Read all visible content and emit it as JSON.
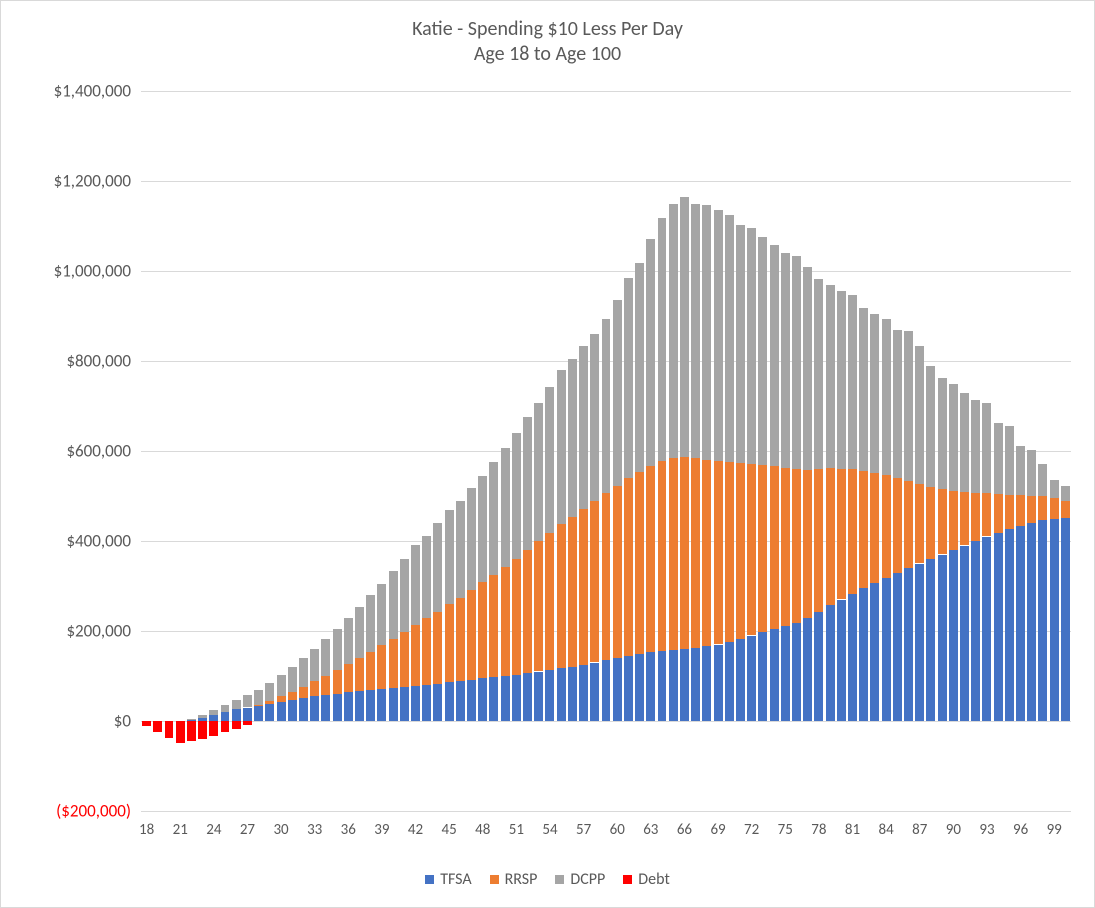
{
  "chart": {
    "type": "stacked-bar",
    "title_line1": "Katie - Spending $10 Less Per Day",
    "title_line2": "Age 18 to Age 100",
    "title_fontsize": 20,
    "title_color": "#595959",
    "background_color": "#ffffff",
    "border_color": "#d9d9d9",
    "grid_color": "#d9d9d9",
    "axis_label_color": "#595959",
    "negative_label_color": "#ff0000",
    "axis_fontsize": 17,
    "x_axis_fontsize": 15,
    "y": {
      "min": -200000,
      "max": 1400000,
      "ticks": [
        {
          "v": -200000,
          "label": "($200,000)",
          "neg": true
        },
        {
          "v": 0,
          "label": "$0"
        },
        {
          "v": 200000,
          "label": "$200,000"
        },
        {
          "v": 400000,
          "label": "$400,000"
        },
        {
          "v": 600000,
          "label": "$600,000"
        },
        {
          "v": 800000,
          "label": "$800,000"
        },
        {
          "v": 1000000,
          "label": "$1,000,000"
        },
        {
          "v": 1200000,
          "label": "$1,200,000"
        },
        {
          "v": 1400000,
          "label": "$1,400,000"
        }
      ]
    },
    "x": {
      "start": 18,
      "end": 100,
      "tick_step": 3,
      "labels": [
        18,
        21,
        24,
        27,
        30,
        33,
        36,
        39,
        42,
        45,
        48,
        51,
        54,
        57,
        60,
        63,
        66,
        69,
        72,
        75,
        78,
        81,
        84,
        87,
        90,
        93,
        96,
        99
      ]
    },
    "series": [
      {
        "key": "tfsa",
        "label": "TFSA",
        "color": "#4472c4"
      },
      {
        "key": "rrsp",
        "label": "RRSP",
        "color": "#ed7d31"
      },
      {
        "key": "dcpp",
        "label": "DCPP",
        "color": "#a5a5a5"
      },
      {
        "key": "debt",
        "label": "Debt",
        "color": "#ff0000"
      }
    ],
    "bar_gap_ratio": 0.2,
    "data": [
      {
        "age": 18,
        "tfsa": 0,
        "rrsp": 0,
        "dcpp": 0,
        "debt": -12000
      },
      {
        "age": 19,
        "tfsa": 0,
        "rrsp": 0,
        "dcpp": 0,
        "debt": -25000
      },
      {
        "age": 20,
        "tfsa": 0,
        "rrsp": 0,
        "dcpp": 0,
        "debt": -37000
      },
      {
        "age": 21,
        "tfsa": 0,
        "rrsp": 0,
        "dcpp": 0,
        "debt": -48000
      },
      {
        "age": 22,
        "tfsa": 3000,
        "rrsp": 0,
        "dcpp": 2000,
        "debt": -45000
      },
      {
        "age": 23,
        "tfsa": 7000,
        "rrsp": 0,
        "dcpp": 6000,
        "debt": -40000
      },
      {
        "age": 24,
        "tfsa": 14000,
        "rrsp": 0,
        "dcpp": 10000,
        "debt": -33000
      },
      {
        "age": 25,
        "tfsa": 21000,
        "rrsp": 0,
        "dcpp": 15000,
        "debt": -25000
      },
      {
        "age": 26,
        "tfsa": 26000,
        "rrsp": 0,
        "dcpp": 21000,
        "debt": -17000
      },
      {
        "age": 27,
        "tfsa": 30000,
        "rrsp": 0,
        "dcpp": 27000,
        "debt": -8000
      },
      {
        "age": 28,
        "tfsa": 34000,
        "rrsp": 2000,
        "dcpp": 33000,
        "debt": 0
      },
      {
        "age": 29,
        "tfsa": 38000,
        "rrsp": 6000,
        "dcpp": 40000,
        "debt": 0
      },
      {
        "age": 30,
        "tfsa": 43000,
        "rrsp": 12000,
        "dcpp": 47000,
        "debt": 0
      },
      {
        "age": 31,
        "tfsa": 47000,
        "rrsp": 18000,
        "dcpp": 55000,
        "debt": 0
      },
      {
        "age": 32,
        "tfsa": 51000,
        "rrsp": 25000,
        "dcpp": 63000,
        "debt": 0
      },
      {
        "age": 33,
        "tfsa": 55000,
        "rrsp": 33000,
        "dcpp": 72000,
        "debt": 0
      },
      {
        "age": 34,
        "tfsa": 58000,
        "rrsp": 42000,
        "dcpp": 82000,
        "debt": 0
      },
      {
        "age": 35,
        "tfsa": 61000,
        "rrsp": 52000,
        "dcpp": 92000,
        "debt": 0
      },
      {
        "age": 36,
        "tfsa": 64000,
        "rrsp": 62000,
        "dcpp": 102000,
        "debt": 0
      },
      {
        "age": 37,
        "tfsa": 67000,
        "rrsp": 73000,
        "dcpp": 113000,
        "debt": 0
      },
      {
        "age": 38,
        "tfsa": 69000,
        "rrsp": 85000,
        "dcpp": 125000,
        "debt": 0
      },
      {
        "age": 39,
        "tfsa": 71000,
        "rrsp": 97000,
        "dcpp": 137000,
        "debt": 0
      },
      {
        "age": 40,
        "tfsa": 73000,
        "rrsp": 110000,
        "dcpp": 150000,
        "debt": 0
      },
      {
        "age": 41,
        "tfsa": 75000,
        "rrsp": 123000,
        "dcpp": 163000,
        "debt": 0
      },
      {
        "age": 42,
        "tfsa": 78000,
        "rrsp": 136000,
        "dcpp": 177000,
        "debt": 0
      },
      {
        "age": 43,
        "tfsa": 80000,
        "rrsp": 148000,
        "dcpp": 183000,
        "debt": 0
      },
      {
        "age": 44,
        "tfsa": 83000,
        "rrsp": 160000,
        "dcpp": 197000,
        "debt": 0
      },
      {
        "age": 45,
        "tfsa": 86000,
        "rrsp": 173000,
        "dcpp": 210000,
        "debt": 0
      },
      {
        "age": 46,
        "tfsa": 88000,
        "rrsp": 186000,
        "dcpp": 214000,
        "debt": 0
      },
      {
        "age": 47,
        "tfsa": 92000,
        "rrsp": 200000,
        "dcpp": 225000,
        "debt": 0
      },
      {
        "age": 48,
        "tfsa": 95000,
        "rrsp": 214000,
        "dcpp": 235000,
        "debt": 0
      },
      {
        "age": 49,
        "tfsa": 97000,
        "rrsp": 228000,
        "dcpp": 251000,
        "debt": 0
      },
      {
        "age": 50,
        "tfsa": 100000,
        "rrsp": 243000,
        "dcpp": 264000,
        "debt": 0
      },
      {
        "age": 51,
        "tfsa": 103000,
        "rrsp": 258000,
        "dcpp": 278000,
        "debt": 0
      },
      {
        "age": 52,
        "tfsa": 106000,
        "rrsp": 273000,
        "dcpp": 296000,
        "debt": 0
      },
      {
        "age": 53,
        "tfsa": 110000,
        "rrsp": 289000,
        "dcpp": 308000,
        "debt": 0
      },
      {
        "age": 54,
        "tfsa": 113000,
        "rrsp": 305000,
        "dcpp": 325000,
        "debt": 0
      },
      {
        "age": 55,
        "tfsa": 117000,
        "rrsp": 320000,
        "dcpp": 343000,
        "debt": 0
      },
      {
        "age": 56,
        "tfsa": 121000,
        "rrsp": 333000,
        "dcpp": 350000,
        "debt": 0
      },
      {
        "age": 57,
        "tfsa": 125000,
        "rrsp": 346000,
        "dcpp": 363000,
        "debt": 0
      },
      {
        "age": 58,
        "tfsa": 130000,
        "rrsp": 359000,
        "dcpp": 370000,
        "debt": 0
      },
      {
        "age": 59,
        "tfsa": 135000,
        "rrsp": 371000,
        "dcpp": 388000,
        "debt": 0
      },
      {
        "age": 60,
        "tfsa": 140000,
        "rrsp": 383000,
        "dcpp": 413000,
        "debt": 0
      },
      {
        "age": 61,
        "tfsa": 145000,
        "rrsp": 394000,
        "dcpp": 446000,
        "debt": 0
      },
      {
        "age": 62,
        "tfsa": 149000,
        "rrsp": 404000,
        "dcpp": 464000,
        "debt": 0
      },
      {
        "age": 63,
        "tfsa": 153000,
        "rrsp": 414000,
        "dcpp": 505000,
        "debt": 0
      },
      {
        "age": 64,
        "tfsa": 156000,
        "rrsp": 422000,
        "dcpp": 540000,
        "debt": 0
      },
      {
        "age": 65,
        "tfsa": 158000,
        "rrsp": 427000,
        "dcpp": 565000,
        "debt": 0
      },
      {
        "age": 66,
        "tfsa": 160000,
        "rrsp": 427000,
        "dcpp": 578000,
        "debt": 0
      },
      {
        "age": 67,
        "tfsa": 163000,
        "rrsp": 422000,
        "dcpp": 565000,
        "debt": 0
      },
      {
        "age": 68,
        "tfsa": 166000,
        "rrsp": 415000,
        "dcpp": 565000,
        "debt": 0
      },
      {
        "age": 69,
        "tfsa": 170000,
        "rrsp": 408000,
        "dcpp": 558000,
        "debt": 0
      },
      {
        "age": 70,
        "tfsa": 175000,
        "rrsp": 400000,
        "dcpp": 549000,
        "debt": 0
      },
      {
        "age": 71,
        "tfsa": 182000,
        "rrsp": 391000,
        "dcpp": 530000,
        "debt": 0
      },
      {
        "age": 72,
        "tfsa": 190000,
        "rrsp": 381000,
        "dcpp": 525000,
        "debt": 0
      },
      {
        "age": 73,
        "tfsa": 198000,
        "rrsp": 371000,
        "dcpp": 507000,
        "debt": 0
      },
      {
        "age": 74,
        "tfsa": 205000,
        "rrsp": 361000,
        "dcpp": 492000,
        "debt": 0
      },
      {
        "age": 75,
        "tfsa": 212000,
        "rrsp": 351000,
        "dcpp": 478000,
        "debt": 0
      },
      {
        "age": 76,
        "tfsa": 218000,
        "rrsp": 341000,
        "dcpp": 474000,
        "debt": 0
      },
      {
        "age": 77,
        "tfsa": 228000,
        "rrsp": 330000,
        "dcpp": 452000,
        "debt": 0
      },
      {
        "age": 78,
        "tfsa": 243000,
        "rrsp": 318000,
        "dcpp": 422000,
        "debt": 0
      },
      {
        "age": 79,
        "tfsa": 257000,
        "rrsp": 305000,
        "dcpp": 408000,
        "debt": 0
      },
      {
        "age": 80,
        "tfsa": 270000,
        "rrsp": 291000,
        "dcpp": 394000,
        "debt": 0
      },
      {
        "age": 81,
        "tfsa": 283000,
        "rrsp": 276000,
        "dcpp": 387000,
        "debt": 0
      },
      {
        "age": 82,
        "tfsa": 295000,
        "rrsp": 261000,
        "dcpp": 362000,
        "debt": 0
      },
      {
        "age": 83,
        "tfsa": 307000,
        "rrsp": 245000,
        "dcpp": 352000,
        "debt": 0
      },
      {
        "age": 84,
        "tfsa": 318000,
        "rrsp": 228000,
        "dcpp": 348000,
        "debt": 0
      },
      {
        "age": 85,
        "tfsa": 329000,
        "rrsp": 211000,
        "dcpp": 328000,
        "debt": 0
      },
      {
        "age": 86,
        "tfsa": 340000,
        "rrsp": 194000,
        "dcpp": 332000,
        "debt": 0
      },
      {
        "age": 87,
        "tfsa": 350000,
        "rrsp": 177000,
        "dcpp": 306000,
        "debt": 0
      },
      {
        "age": 88,
        "tfsa": 360000,
        "rrsp": 161000,
        "dcpp": 268000,
        "debt": 0
      },
      {
        "age": 89,
        "tfsa": 370000,
        "rrsp": 146000,
        "dcpp": 247000,
        "debt": 0
      },
      {
        "age": 90,
        "tfsa": 380000,
        "rrsp": 132000,
        "dcpp": 236000,
        "debt": 0
      },
      {
        "age": 91,
        "tfsa": 390000,
        "rrsp": 119000,
        "dcpp": 220000,
        "debt": 0
      },
      {
        "age": 92,
        "tfsa": 400000,
        "rrsp": 107000,
        "dcpp": 207000,
        "debt": 0
      },
      {
        "age": 93,
        "tfsa": 410000,
        "rrsp": 96000,
        "dcpp": 200000,
        "debt": 0
      },
      {
        "age": 94,
        "tfsa": 418000,
        "rrsp": 86000,
        "dcpp": 158000,
        "debt": 0
      },
      {
        "age": 95,
        "tfsa": 426000,
        "rrsp": 77000,
        "dcpp": 153000,
        "debt": 0
      },
      {
        "age": 96,
        "tfsa": 433000,
        "rrsp": 69000,
        "dcpp": 109000,
        "debt": 0
      },
      {
        "age": 97,
        "tfsa": 440000,
        "rrsp": 61000,
        "dcpp": 102000,
        "debt": 0
      },
      {
        "age": 98,
        "tfsa": 446000,
        "rrsp": 53000,
        "dcpp": 72000,
        "debt": 0
      },
      {
        "age": 99,
        "tfsa": 450000,
        "rrsp": 45000,
        "dcpp": 40000,
        "debt": 0
      },
      {
        "age": 100,
        "tfsa": 452000,
        "rrsp": 37000,
        "dcpp": 33000,
        "debt": 0
      }
    ]
  }
}
